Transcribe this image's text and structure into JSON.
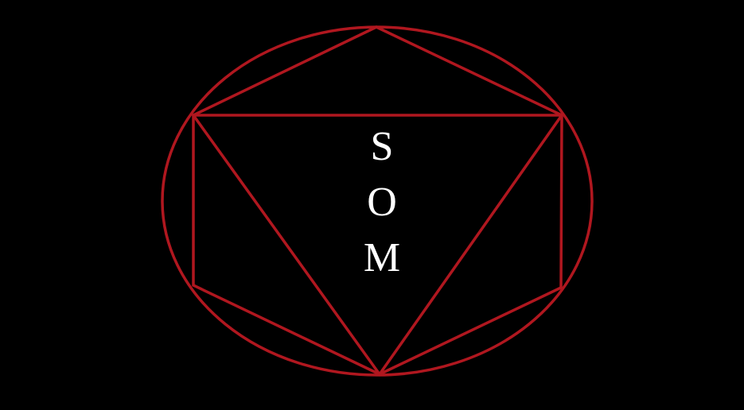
{
  "emblem": {
    "letters": [
      "S",
      "O",
      "M"
    ],
    "colors": {
      "background": "#000000",
      "stroke": "#b0171f",
      "text": "#ffffff"
    }
  }
}
